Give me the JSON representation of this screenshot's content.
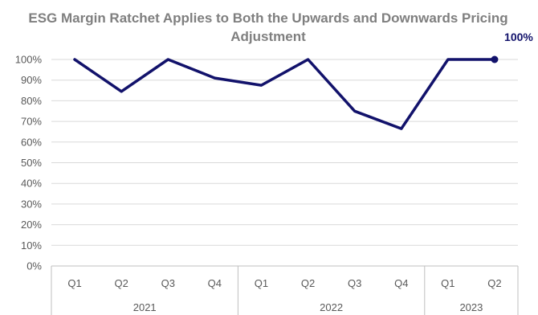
{
  "chart_data": {
    "type": "line",
    "title_lines": [
      "ESG Margin Ratchet Applies to Both the Upwards and Downwards Pricing",
      "Adjustment"
    ],
    "categories": [
      "Q1",
      "Q2",
      "Q3",
      "Q4",
      "Q1",
      "Q2",
      "Q3",
      "Q4",
      "Q1",
      "Q2"
    ],
    "groups": [
      {
        "label": "2021",
        "count": 4
      },
      {
        "label": "2022",
        "count": 4
      },
      {
        "label": "2023",
        "count": 2
      }
    ],
    "series": [
      {
        "values": [
          100,
          84.5,
          100,
          91,
          87.5,
          100,
          75,
          66.5,
          100,
          100
        ],
        "color": "#12126b"
      }
    ],
    "ylim": [
      0,
      100
    ],
    "yticks": [
      0,
      10,
      20,
      30,
      40,
      50,
      60,
      70,
      80,
      90,
      100
    ],
    "ytick_labels": [
      "0%",
      "10%",
      "20%",
      "30%",
      "40%",
      "50%",
      "60%",
      "70%",
      "80%",
      "90%",
      "100%"
    ],
    "grid": true,
    "legend": "none",
    "end_label": "100%",
    "colors": {
      "title": "#7f7f7f",
      "ticks": "#595959",
      "grid": "#d9d9d9",
      "axis": "#bfbfbf",
      "label": "#12126b"
    }
  }
}
